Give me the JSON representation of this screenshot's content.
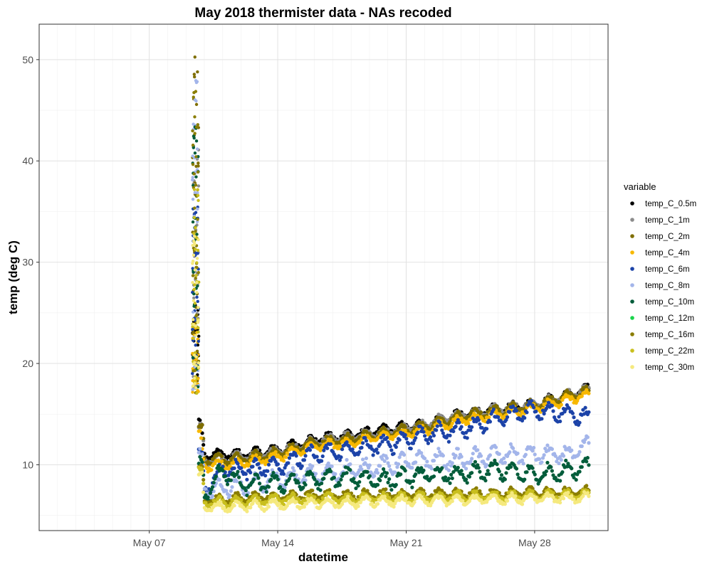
{
  "chart_data": {
    "type": "scatter",
    "title": "May 2018 thermister data - NAs recoded",
    "xlabel": "datetime",
    "ylabel": "temp (deg C)",
    "x_range": [
      "2018-05-01",
      "2018-06-01"
    ],
    "ylim": [
      3.5,
      53.5
    ],
    "x_ticks": [
      {
        "date": "2018-05-07",
        "label": "May 07"
      },
      {
        "date": "2018-05-14",
        "label": "May 14"
      },
      {
        "date": "2018-05-21",
        "label": "May 21"
      },
      {
        "date": "2018-05-28",
        "label": "May 28"
      }
    ],
    "y_ticks": [
      10,
      20,
      30,
      40,
      50
    ],
    "grid": true,
    "legend_title": "variable",
    "legend_position": "right",
    "series": [
      {
        "name": "temp_C_0.5m",
        "color": "#000000",
        "points": [
          [
            "2018-05-09",
            26
          ],
          [
            "2018-05-10",
            11
          ],
          [
            "2018-05-12",
            11
          ],
          [
            "2018-05-14",
            11.5
          ],
          [
            "2018-05-16",
            12.5
          ],
          [
            "2018-05-18",
            13
          ],
          [
            "2018-05-20",
            13.5
          ],
          [
            "2018-05-22",
            14
          ],
          [
            "2018-05-24",
            15
          ],
          [
            "2018-05-26",
            15.5
          ],
          [
            "2018-05-28",
            16
          ],
          [
            "2018-05-30",
            17
          ],
          [
            "2018-05-31",
            17.5
          ]
        ]
      },
      {
        "name": "temp_C_1m",
        "color": "#8c8c8c",
        "points": [
          [
            "2018-05-09",
            42
          ],
          [
            "2018-05-10",
            10.5
          ],
          [
            "2018-05-12",
            10.8
          ],
          [
            "2018-05-14",
            11.3
          ],
          [
            "2018-05-16",
            12.3
          ],
          [
            "2018-05-18",
            12.8
          ],
          [
            "2018-05-20",
            13.3
          ],
          [
            "2018-05-22",
            14
          ],
          [
            "2018-05-24",
            15
          ],
          [
            "2018-05-26",
            15.5
          ],
          [
            "2018-05-28",
            16
          ],
          [
            "2018-05-30",
            17
          ],
          [
            "2018-05-31",
            17.5
          ]
        ]
      },
      {
        "name": "temp_C_2m",
        "color": "#7f6e00",
        "points": [
          [
            "2018-05-09",
            51
          ],
          [
            "2018-05-10",
            10.5
          ],
          [
            "2018-05-12",
            10.6
          ],
          [
            "2018-05-14",
            11.2
          ],
          [
            "2018-05-16",
            12.2
          ],
          [
            "2018-05-18",
            12.6
          ],
          [
            "2018-05-20",
            13.2
          ],
          [
            "2018-05-22",
            13.8
          ],
          [
            "2018-05-24",
            14.8
          ],
          [
            "2018-05-26",
            15.4
          ],
          [
            "2018-05-28",
            15.9
          ],
          [
            "2018-05-30",
            16.9
          ],
          [
            "2018-05-31",
            17.3
          ]
        ]
      },
      {
        "name": "temp_C_4m",
        "color": "#f7b800",
        "points": [
          [
            "2018-05-09",
            24
          ],
          [
            "2018-05-10",
            9.8
          ],
          [
            "2018-05-12",
            10.2
          ],
          [
            "2018-05-14",
            10.8
          ],
          [
            "2018-05-16",
            11.8
          ],
          [
            "2018-05-18",
            12.2
          ],
          [
            "2018-05-20",
            12.9
          ],
          [
            "2018-05-22",
            13.4
          ],
          [
            "2018-05-24",
            14.4
          ],
          [
            "2018-05-26",
            15
          ],
          [
            "2018-05-28",
            15.6
          ],
          [
            "2018-05-30",
            16.5
          ],
          [
            "2018-05-31",
            17
          ]
        ]
      },
      {
        "name": "temp_C_6m",
        "color": "#1c43a8",
        "points": [
          [
            "2018-05-09",
            36
          ],
          [
            "2018-05-10",
            7.5
          ],
          [
            "2018-05-11",
            9.5
          ],
          [
            "2018-05-12",
            9.5
          ],
          [
            "2018-05-14",
            10
          ],
          [
            "2018-05-16",
            11
          ],
          [
            "2018-05-18",
            11.5
          ],
          [
            "2018-05-20",
            12
          ],
          [
            "2018-05-22",
            13
          ],
          [
            "2018-05-24",
            13.5
          ],
          [
            "2018-05-26",
            14.5
          ],
          [
            "2018-05-28",
            15.5
          ],
          [
            "2018-05-30",
            15
          ],
          [
            "2018-05-31",
            14.5
          ]
        ]
      },
      {
        "name": "temp_C_8m",
        "color": "#a3b5ea",
        "points": [
          [
            "2018-05-09",
            48
          ],
          [
            "2018-05-10",
            7.5
          ],
          [
            "2018-05-12",
            8
          ],
          [
            "2018-05-14",
            8.5
          ],
          [
            "2018-05-16",
            9
          ],
          [
            "2018-05-18",
            9.5
          ],
          [
            "2018-05-20",
            10
          ],
          [
            "2018-05-22",
            10.5
          ],
          [
            "2018-05-24",
            10.5
          ],
          [
            "2018-05-26",
            11
          ],
          [
            "2018-05-28",
            11
          ],
          [
            "2018-05-30",
            11
          ],
          [
            "2018-05-31",
            12
          ]
        ]
      },
      {
        "name": "temp_C_10m",
        "color": "#025c3a",
        "points": [
          [
            "2018-05-09",
            44
          ],
          [
            "2018-05-10",
            6.8
          ],
          [
            "2018-05-11",
            9.5
          ],
          [
            "2018-05-12",
            8
          ],
          [
            "2018-05-14",
            8.2
          ],
          [
            "2018-05-16",
            8.5
          ],
          [
            "2018-05-18",
            8.8
          ],
          [
            "2018-05-20",
            8.5
          ],
          [
            "2018-05-22",
            9
          ],
          [
            "2018-05-24",
            9
          ],
          [
            "2018-05-26",
            9.5
          ],
          [
            "2018-05-28",
            9
          ],
          [
            "2018-05-30",
            9.5
          ],
          [
            "2018-05-31",
            10
          ]
        ]
      },
      {
        "name": "temp_C_12m",
        "color": "#19d44b",
        "points": []
      },
      {
        "name": "temp_C_16m",
        "color": "#8a7d00",
        "points": [
          [
            "2018-05-09",
            47
          ],
          [
            "2018-05-10",
            6.5
          ],
          [
            "2018-05-12",
            6.7
          ],
          [
            "2018-05-14",
            6.9
          ],
          [
            "2018-05-16",
            7
          ],
          [
            "2018-05-18",
            7
          ],
          [
            "2018-05-20",
            7.1
          ],
          [
            "2018-05-22",
            7.1
          ],
          [
            "2018-05-24",
            7.2
          ],
          [
            "2018-05-26",
            7.2
          ],
          [
            "2018-05-28",
            7.3
          ],
          [
            "2018-05-30",
            7.3
          ],
          [
            "2018-05-31",
            7.4
          ]
        ]
      },
      {
        "name": "temp_C_22m",
        "color": "#c9bf1e",
        "points": [
          [
            "2018-05-09",
            38
          ],
          [
            "2018-05-10",
            6.3
          ],
          [
            "2018-05-12",
            6.4
          ],
          [
            "2018-05-14",
            6.6
          ],
          [
            "2018-05-16",
            6.7
          ],
          [
            "2018-05-18",
            6.7
          ],
          [
            "2018-05-20",
            6.8
          ],
          [
            "2018-05-22",
            6.8
          ],
          [
            "2018-05-24",
            6.9
          ],
          [
            "2018-05-26",
            6.9
          ],
          [
            "2018-05-28",
            7
          ],
          [
            "2018-05-30",
            7
          ],
          [
            "2018-05-31",
            7.1
          ]
        ]
      },
      {
        "name": "temp_C_30m",
        "color": "#f5e97e",
        "points": [
          [
            "2018-05-09",
            33
          ],
          [
            "2018-05-10",
            5.8
          ],
          [
            "2018-05-12",
            5.9
          ],
          [
            "2018-05-14",
            6.1
          ],
          [
            "2018-05-16",
            6.2
          ],
          [
            "2018-05-18",
            6.3
          ],
          [
            "2018-05-20",
            6.4
          ],
          [
            "2018-05-22",
            6.5
          ],
          [
            "2018-05-24",
            6.5
          ],
          [
            "2018-05-26",
            6.6
          ],
          [
            "2018-05-28",
            6.7
          ],
          [
            "2018-05-30",
            6.7
          ],
          [
            "2018-05-31",
            6.8
          ]
        ]
      }
    ]
  }
}
